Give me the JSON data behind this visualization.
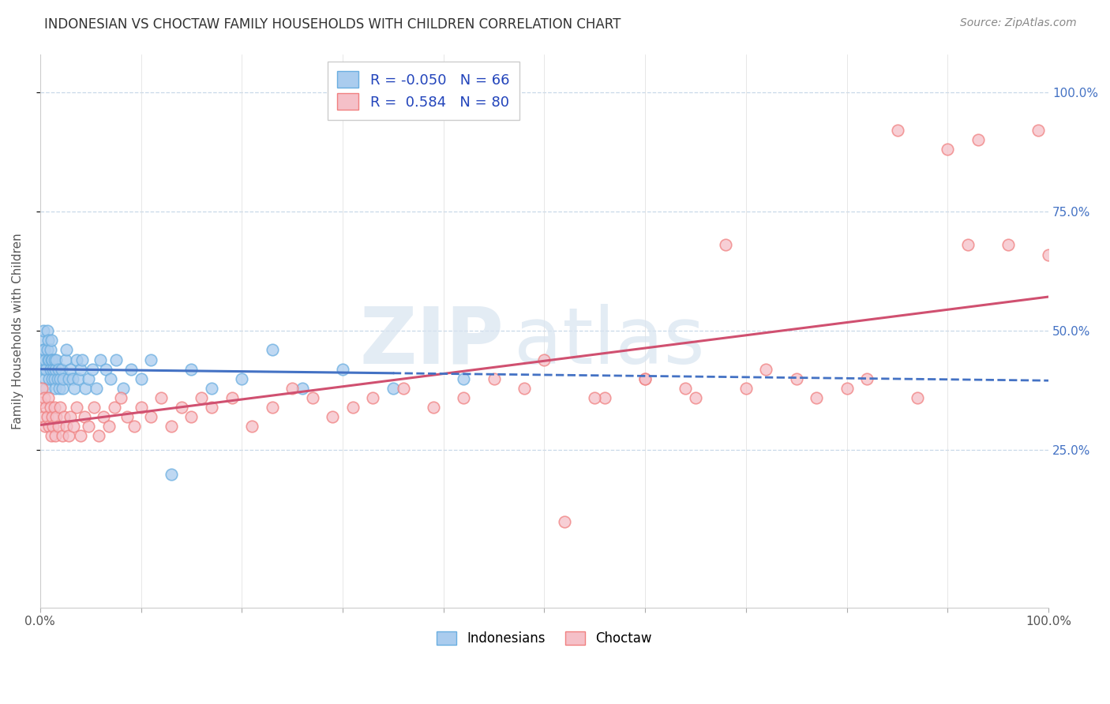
{
  "title": "INDONESIAN VS CHOCTAW FAMILY HOUSEHOLDS WITH CHILDREN CORRELATION CHART",
  "source": "Source: ZipAtlas.com",
  "ylabel": "Family Households with Children",
  "xlim": [
    0,
    1
  ],
  "ylim": [
    -0.08,
    1.08
  ],
  "ytick_labels_right": [
    "25.0%",
    "50.0%",
    "75.0%",
    "100.0%"
  ],
  "ytick_vals_right": [
    0.25,
    0.5,
    0.75,
    1.0
  ],
  "xtick_labels": [
    "0.0%",
    "",
    "",
    "",
    "",
    "",
    "",
    "",
    "",
    "",
    "100.0%"
  ],
  "xtick_vals": [
    0.0,
    0.1,
    0.2,
    0.3,
    0.4,
    0.5,
    0.6,
    0.7,
    0.8,
    0.9,
    1.0
  ],
  "indonesian_color": "#6aaee0",
  "choctaw_color": "#f08080",
  "indonesian_line_color": "#4472c4",
  "choctaw_line_color": "#d05070",
  "indonesian_R": -0.05,
  "indonesian_N": 66,
  "choctaw_R": 0.584,
  "choctaw_N": 80,
  "watermark_zip": "ZIP",
  "watermark_atlas": "atlas",
  "background_color": "#ffffff",
  "grid_color": "#c8d8e8",
  "legend_label_1": "Indonesians",
  "legend_label_2": "Choctaw",
  "indonesian_x": [
    0.002,
    0.002,
    0.003,
    0.003,
    0.004,
    0.004,
    0.005,
    0.005,
    0.006,
    0.006,
    0.007,
    0.007,
    0.008,
    0.008,
    0.009,
    0.009,
    0.01,
    0.01,
    0.011,
    0.011,
    0.012,
    0.012,
    0.013,
    0.014,
    0.014,
    0.015,
    0.015,
    0.016,
    0.017,
    0.018,
    0.019,
    0.02,
    0.021,
    0.022,
    0.023,
    0.025,
    0.026,
    0.028,
    0.03,
    0.032,
    0.034,
    0.036,
    0.038,
    0.04,
    0.042,
    0.045,
    0.048,
    0.052,
    0.056,
    0.06,
    0.065,
    0.07,
    0.075,
    0.082,
    0.09,
    0.1,
    0.11,
    0.13,
    0.15,
    0.17,
    0.2,
    0.23,
    0.26,
    0.3,
    0.35,
    0.42
  ],
  "indonesian_y": [
    0.44,
    0.48,
    0.46,
    0.5,
    0.42,
    0.46,
    0.4,
    0.44,
    0.38,
    0.42,
    0.46,
    0.5,
    0.44,
    0.48,
    0.4,
    0.44,
    0.42,
    0.46,
    0.44,
    0.48,
    0.4,
    0.44,
    0.42,
    0.4,
    0.44,
    0.38,
    0.42,
    0.44,
    0.4,
    0.42,
    0.38,
    0.4,
    0.42,
    0.38,
    0.4,
    0.44,
    0.46,
    0.4,
    0.42,
    0.4,
    0.38,
    0.44,
    0.4,
    0.42,
    0.44,
    0.38,
    0.4,
    0.42,
    0.38,
    0.44,
    0.42,
    0.4,
    0.44,
    0.38,
    0.42,
    0.4,
    0.44,
    0.2,
    0.42,
    0.38,
    0.4,
    0.46,
    0.38,
    0.42,
    0.38,
    0.4
  ],
  "choctaw_x": [
    0.001,
    0.002,
    0.003,
    0.004,
    0.005,
    0.006,
    0.007,
    0.008,
    0.009,
    0.01,
    0.011,
    0.012,
    0.013,
    0.014,
    0.015,
    0.016,
    0.018,
    0.02,
    0.022,
    0.024,
    0.026,
    0.028,
    0.03,
    0.033,
    0.036,
    0.04,
    0.044,
    0.048,
    0.053,
    0.058,
    0.063,
    0.068,
    0.074,
    0.08,
    0.086,
    0.093,
    0.1,
    0.11,
    0.12,
    0.13,
    0.14,
    0.15,
    0.16,
    0.17,
    0.19,
    0.21,
    0.23,
    0.25,
    0.27,
    0.29,
    0.31,
    0.33,
    0.36,
    0.39,
    0.42,
    0.45,
    0.48,
    0.52,
    0.56,
    0.6,
    0.64,
    0.68,
    0.72,
    0.77,
    0.82,
    0.87,
    0.92,
    0.5,
    0.55,
    0.6,
    0.65,
    0.7,
    0.75,
    0.8,
    0.85,
    0.9,
    0.93,
    0.96,
    0.99,
    1.0
  ],
  "choctaw_y": [
    0.35,
    0.38,
    0.32,
    0.36,
    0.3,
    0.34,
    0.32,
    0.36,
    0.3,
    0.34,
    0.28,
    0.32,
    0.3,
    0.34,
    0.28,
    0.32,
    0.3,
    0.34,
    0.28,
    0.32,
    0.3,
    0.28,
    0.32,
    0.3,
    0.34,
    0.28,
    0.32,
    0.3,
    0.34,
    0.28,
    0.32,
    0.3,
    0.34,
    0.36,
    0.32,
    0.3,
    0.34,
    0.32,
    0.36,
    0.3,
    0.34,
    0.32,
    0.36,
    0.34,
    0.36,
    0.3,
    0.34,
    0.38,
    0.36,
    0.32,
    0.34,
    0.36,
    0.38,
    0.34,
    0.36,
    0.4,
    0.38,
    0.1,
    0.36,
    0.4,
    0.38,
    0.68,
    0.42,
    0.36,
    0.4,
    0.36,
    0.68,
    0.44,
    0.36,
    0.4,
    0.36,
    0.38,
    0.4,
    0.38,
    0.92,
    0.88,
    0.9,
    0.68,
    0.92,
    0.66
  ]
}
